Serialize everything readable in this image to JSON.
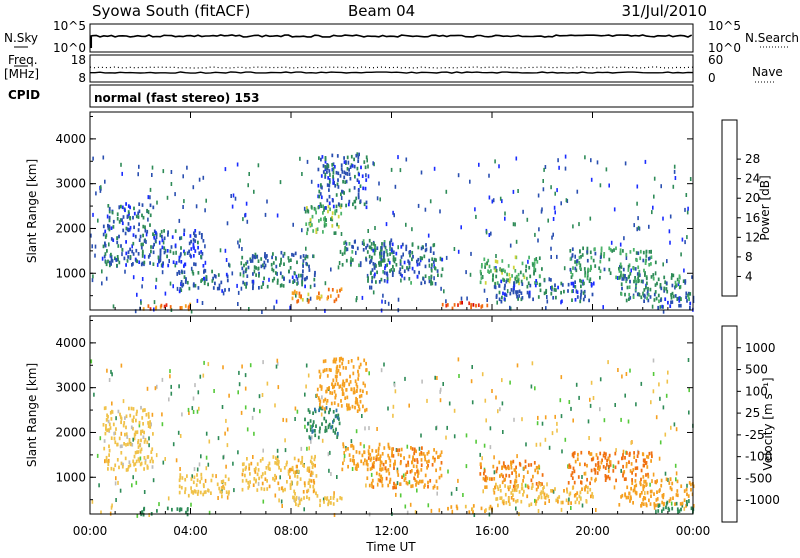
{
  "header": {
    "station": "Syowa South (fitACF)",
    "beam": "Beam 04",
    "date": "31/Jul/2010"
  },
  "noise_panel": {
    "left_label": "N.Sky",
    "right_label": "N.Search",
    "left_ticks": [
      "10^5",
      "10^0"
    ],
    "right_ticks": [
      "10^5",
      "10^0"
    ]
  },
  "freq_panel": {
    "label_top": "Freq.",
    "label_unit": "[MHz]",
    "left_ticks": [
      "18",
      "8"
    ],
    "right_ticks": [
      "60",
      "0"
    ],
    "right_label": "Nave",
    "cpid_label": "CPID",
    "mode_text": "normal (fast stereo) 153"
  },
  "x_axis": {
    "label": "Time UT",
    "ticks": [
      "00:00",
      "04:00",
      "08:00",
      "12:00",
      "16:00",
      "20:00",
      "00:00"
    ],
    "range_hours": [
      0,
      24
    ]
  },
  "chart_data": [
    {
      "type": "heatmap",
      "name": "power",
      "ylabel": "Slant Range [km]",
      "ylim": [
        180,
        4600
      ],
      "yticks": [
        "1000",
        "2000",
        "3000",
        "4000"
      ],
      "ytick_values": [
        1000,
        2000,
        3000,
        4000
      ],
      "colorbar": {
        "label": "Power [dB]",
        "ticks": [
          "4",
          "8",
          "12",
          "16",
          "20",
          "24",
          "28"
        ],
        "colors": [
          "#1a2cff",
          "#2a4fb0",
          "#2e8b57",
          "#4cb36a",
          "#cfd43a",
          "#f5a020",
          "#f06a10",
          "#e82a10",
          "#d40000"
        ]
      },
      "regions": [
        {
          "t": [
            0.5,
            2.5
          ],
          "r": [
            1200,
            2600
          ],
          "value": 6
        },
        {
          "t": [
            2.5,
            4.5
          ],
          "r": [
            1200,
            2000
          ],
          "value": 5
        },
        {
          "t": [
            3.5,
            5.5
          ],
          "r": [
            600,
            1100
          ],
          "value": 6
        },
        {
          "t": [
            2,
            4
          ],
          "r": [
            200,
            350
          ],
          "value": 22
        },
        {
          "t": [
            6,
            9
          ],
          "r": [
            700,
            1500
          ],
          "value": 7
        },
        {
          "t": [
            8.5,
            10
          ],
          "r": [
            1900,
            2600
          ],
          "value": 12
        },
        {
          "t": [
            9,
            11
          ],
          "r": [
            2500,
            3700
          ],
          "value": 6
        },
        {
          "t": [
            10,
            12
          ],
          "r": [
            1200,
            1800
          ],
          "value": 8
        },
        {
          "t": [
            8,
            10
          ],
          "r": [
            400,
            700
          ],
          "value": 20
        },
        {
          "t": [
            11,
            14
          ],
          "r": [
            800,
            1700
          ],
          "value": 7
        },
        {
          "t": [
            14,
            16
          ],
          "r": [
            250,
            400
          ],
          "value": 25
        },
        {
          "t": [
            15.5,
            18
          ],
          "r": [
            800,
            1400
          ],
          "value": 12
        },
        {
          "t": [
            16,
            20
          ],
          "r": [
            400,
            900
          ],
          "value": 6
        },
        {
          "t": [
            19,
            22.5
          ],
          "r": [
            900,
            1600
          ],
          "value": 10
        },
        {
          "t": [
            21,
            24
          ],
          "r": [
            400,
            1000
          ],
          "value": 9
        },
        {
          "t": [
            22.5,
            24
          ],
          "r": [
            250,
            500
          ],
          "value": 5
        }
      ]
    },
    {
      "type": "heatmap",
      "name": "velocity",
      "ylabel": "Slant Range [km]",
      "ylim": [
        180,
        4600
      ],
      "yticks": [
        "1000",
        "2000",
        "3000",
        "4000"
      ],
      "ytick_values": [
        1000,
        2000,
        3000,
        4000
      ],
      "colorbar": {
        "label": "Velocity [m s⁻¹]",
        "ticks": [
          "1000",
          "500",
          "100",
          "25",
          "-25",
          "-100",
          "-500",
          "-1000"
        ],
        "colors": [
          "#2a3ad0",
          "#2c73a6",
          "#2e8b57",
          "#55c93a",
          "#bdbdbd",
          "#f0c24a",
          "#f5a020",
          "#f07010",
          "#e83010"
        ]
      },
      "regions": [
        {
          "t": [
            0.5,
            2.5
          ],
          "r": [
            1200,
            2600
          ],
          "value": -50
        },
        {
          "t": [
            2,
            4
          ],
          "r": [
            200,
            350
          ],
          "value": 300
        },
        {
          "t": [
            3.5,
            5.5
          ],
          "r": [
            600,
            1100
          ],
          "value": -60
        },
        {
          "t": [
            6,
            9
          ],
          "r": [
            700,
            1500
          ],
          "value": -80
        },
        {
          "t": [
            8.5,
            10
          ],
          "r": [
            1900,
            2600
          ],
          "value": 400
        },
        {
          "t": [
            9,
            11
          ],
          "r": [
            2500,
            3700
          ],
          "value": -300
        },
        {
          "t": [
            10,
            12
          ],
          "r": [
            1200,
            1800
          ],
          "value": -200
        },
        {
          "t": [
            8,
            10
          ],
          "r": [
            400,
            700
          ],
          "value": -40
        },
        {
          "t": [
            11,
            14
          ],
          "r": [
            800,
            1700
          ],
          "value": -400
        },
        {
          "t": [
            14,
            16
          ],
          "r": [
            250,
            400
          ],
          "value": -150
        },
        {
          "t": [
            15.5,
            18
          ],
          "r": [
            800,
            1400
          ],
          "value": -500
        },
        {
          "t": [
            16,
            20
          ],
          "r": [
            400,
            900
          ],
          "value": -80
        },
        {
          "t": [
            19,
            22.5
          ],
          "r": [
            900,
            1600
          ],
          "value": -600
        },
        {
          "t": [
            21,
            24
          ],
          "r": [
            400,
            1000
          ],
          "value": -200
        },
        {
          "t": [
            22.5,
            24
          ],
          "r": [
            250,
            500
          ],
          "value": 200
        }
      ]
    }
  ]
}
